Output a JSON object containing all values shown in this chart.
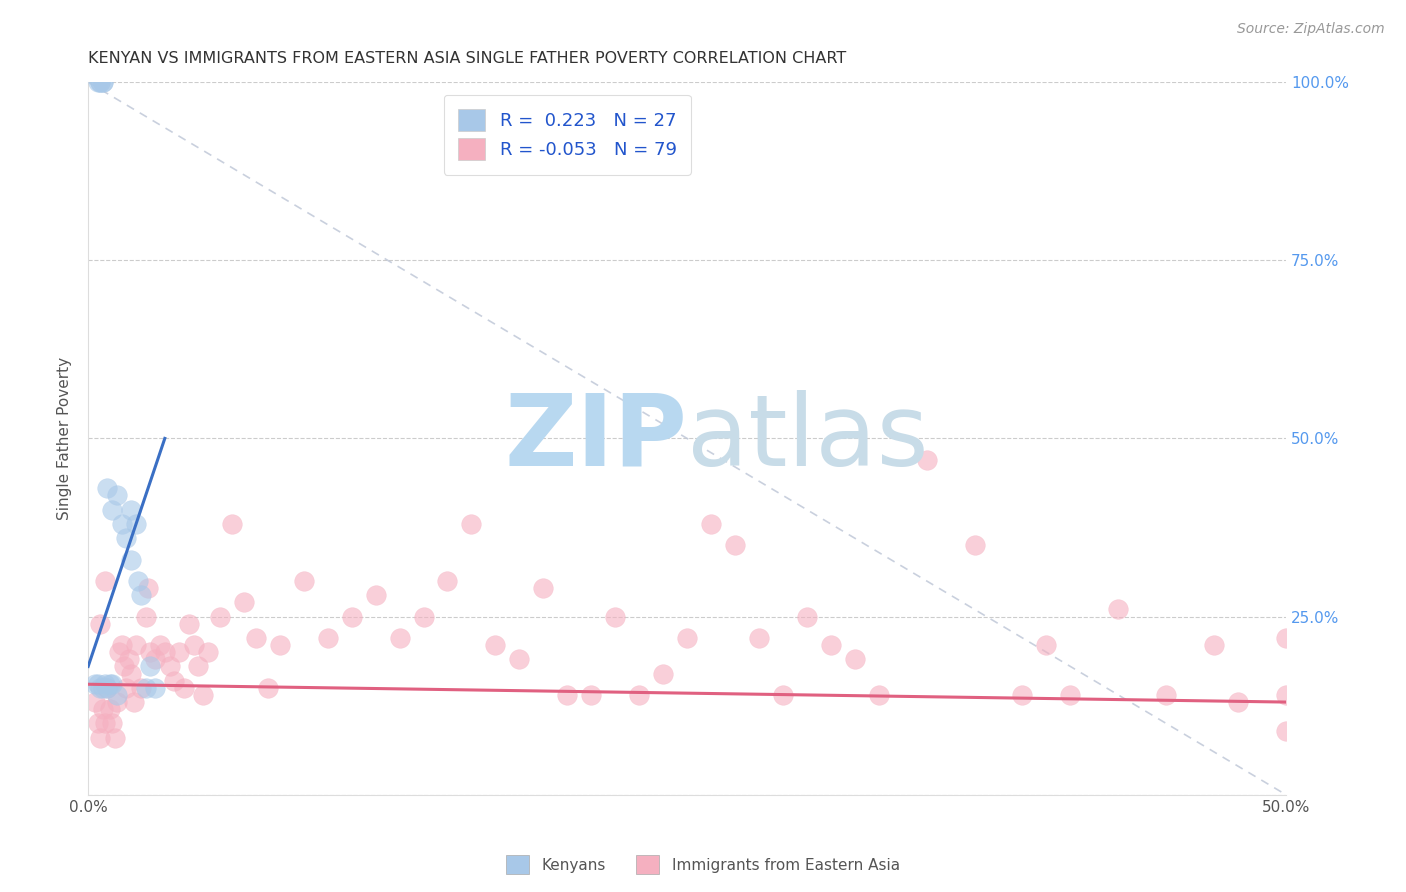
{
  "title": "KENYAN VS IMMIGRANTS FROM EASTERN ASIA SINGLE FATHER POVERTY CORRELATION CHART",
  "source": "Source: ZipAtlas.com",
  "ylabel": "Single Father Poverty",
  "xlim": [
    0.0,
    0.5
  ],
  "ylim": [
    0.0,
    1.0
  ],
  "kenyan_R": 0.223,
  "kenyan_N": 27,
  "eastern_asia_R": -0.053,
  "eastern_asia_N": 79,
  "kenyan_color": "#a8c8e8",
  "eastern_asia_color": "#f5b0c0",
  "kenyan_line_color": "#3a6fc4",
  "eastern_asia_line_color": "#e06080",
  "diag_line_color": "#c0c8d8",
  "watermark_zip_color": "#b8d8f0",
  "watermark_atlas_color": "#c8dce8",
  "kenyan_x": [
    0.004,
    0.005,
    0.006,
    0.005,
    0.006,
    0.008,
    0.01,
    0.012,
    0.014,
    0.016,
    0.018,
    0.018,
    0.02,
    0.021,
    0.022,
    0.024,
    0.026,
    0.028,
    0.003,
    0.004,
    0.005,
    0.006,
    0.007,
    0.008,
    0.009,
    0.01,
    0.012
  ],
  "kenyan_y": [
    1.0,
    1.0,
    1.0,
    1.0,
    1.0,
    0.43,
    0.4,
    0.42,
    0.38,
    0.36,
    0.33,
    0.4,
    0.38,
    0.3,
    0.28,
    0.15,
    0.18,
    0.15,
    0.155,
    0.155,
    0.15,
    0.15,
    0.155,
    0.15,
    0.155,
    0.155,
    0.14
  ],
  "eastern_asia_x": [
    0.003,
    0.004,
    0.005,
    0.006,
    0.007,
    0.008,
    0.009,
    0.01,
    0.011,
    0.012,
    0.013,
    0.014,
    0.015,
    0.016,
    0.017,
    0.018,
    0.019,
    0.02,
    0.022,
    0.024,
    0.025,
    0.026,
    0.028,
    0.03,
    0.032,
    0.034,
    0.036,
    0.038,
    0.04,
    0.042,
    0.044,
    0.046,
    0.048,
    0.05,
    0.055,
    0.06,
    0.065,
    0.07,
    0.075,
    0.08,
    0.09,
    0.1,
    0.11,
    0.12,
    0.13,
    0.14,
    0.15,
    0.16,
    0.17,
    0.18,
    0.19,
    0.2,
    0.21,
    0.22,
    0.23,
    0.24,
    0.25,
    0.26,
    0.27,
    0.28,
    0.29,
    0.3,
    0.31,
    0.32,
    0.33,
    0.35,
    0.37,
    0.39,
    0.4,
    0.41,
    0.43,
    0.45,
    0.47,
    0.48,
    0.5,
    0.5,
    0.5,
    0.005,
    0.007
  ],
  "eastern_asia_y": [
    0.13,
    0.1,
    0.08,
    0.12,
    0.1,
    0.15,
    0.12,
    0.1,
    0.08,
    0.13,
    0.2,
    0.21,
    0.18,
    0.15,
    0.19,
    0.17,
    0.13,
    0.21,
    0.15,
    0.25,
    0.29,
    0.2,
    0.19,
    0.21,
    0.2,
    0.18,
    0.16,
    0.2,
    0.15,
    0.24,
    0.21,
    0.18,
    0.14,
    0.2,
    0.25,
    0.38,
    0.27,
    0.22,
    0.15,
    0.21,
    0.3,
    0.22,
    0.25,
    0.28,
    0.22,
    0.25,
    0.3,
    0.38,
    0.21,
    0.19,
    0.29,
    0.14,
    0.14,
    0.25,
    0.14,
    0.17,
    0.22,
    0.38,
    0.35,
    0.22,
    0.14,
    0.25,
    0.21,
    0.19,
    0.14,
    0.47,
    0.35,
    0.14,
    0.21,
    0.14,
    0.26,
    0.14,
    0.21,
    0.13,
    0.14,
    0.22,
    0.09,
    0.24,
    0.3
  ]
}
